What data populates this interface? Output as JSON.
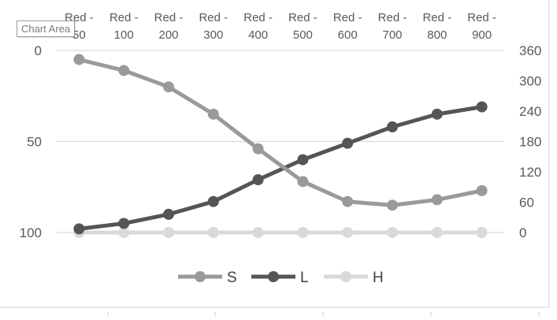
{
  "tooltip": "Chart Area",
  "colors": {
    "S": "#9a9a9a",
    "L": "#555555",
    "H": "#d9d9d9",
    "grid": "#d9d9d9",
    "text": "#595959"
  },
  "chart_data": {
    "type": "line",
    "categories": [
      [
        "Red -",
        "50"
      ],
      [
        "Red -",
        "100"
      ],
      [
        "Red -",
        "200"
      ],
      [
        "Red -",
        "300"
      ],
      [
        "Red -",
        "400"
      ],
      [
        "Red -",
        "500"
      ],
      [
        "Red -",
        "600"
      ],
      [
        "Red -",
        "700"
      ],
      [
        "Red -",
        "800"
      ],
      [
        "Red -",
        "900"
      ]
    ],
    "x_axis_position": "top",
    "primary_axis": {
      "side": "left",
      "reversed": true,
      "ylim": [
        0,
        100
      ],
      "ticks": [
        "0",
        "50",
        "100"
      ]
    },
    "secondary_axis": {
      "side": "right",
      "ylim": [
        0,
        360
      ],
      "ticks": [
        "0",
        "60",
        "120",
        "180",
        "240",
        "300",
        "360"
      ]
    },
    "series": [
      {
        "name": "S",
        "axis": "primary",
        "values": [
          5,
          11,
          20,
          35,
          54,
          72,
          83,
          85,
          82,
          77
        ]
      },
      {
        "name": "L",
        "axis": "primary",
        "values": [
          98,
          95,
          90,
          83,
          71,
          60,
          51,
          42,
          35,
          31
        ]
      },
      {
        "name": "H",
        "axis": "secondary",
        "values": [
          0,
          0,
          0,
          0,
          0,
          0,
          0,
          0,
          0,
          0
        ]
      }
    ],
    "gridlines": true,
    "legend": "bottom"
  }
}
